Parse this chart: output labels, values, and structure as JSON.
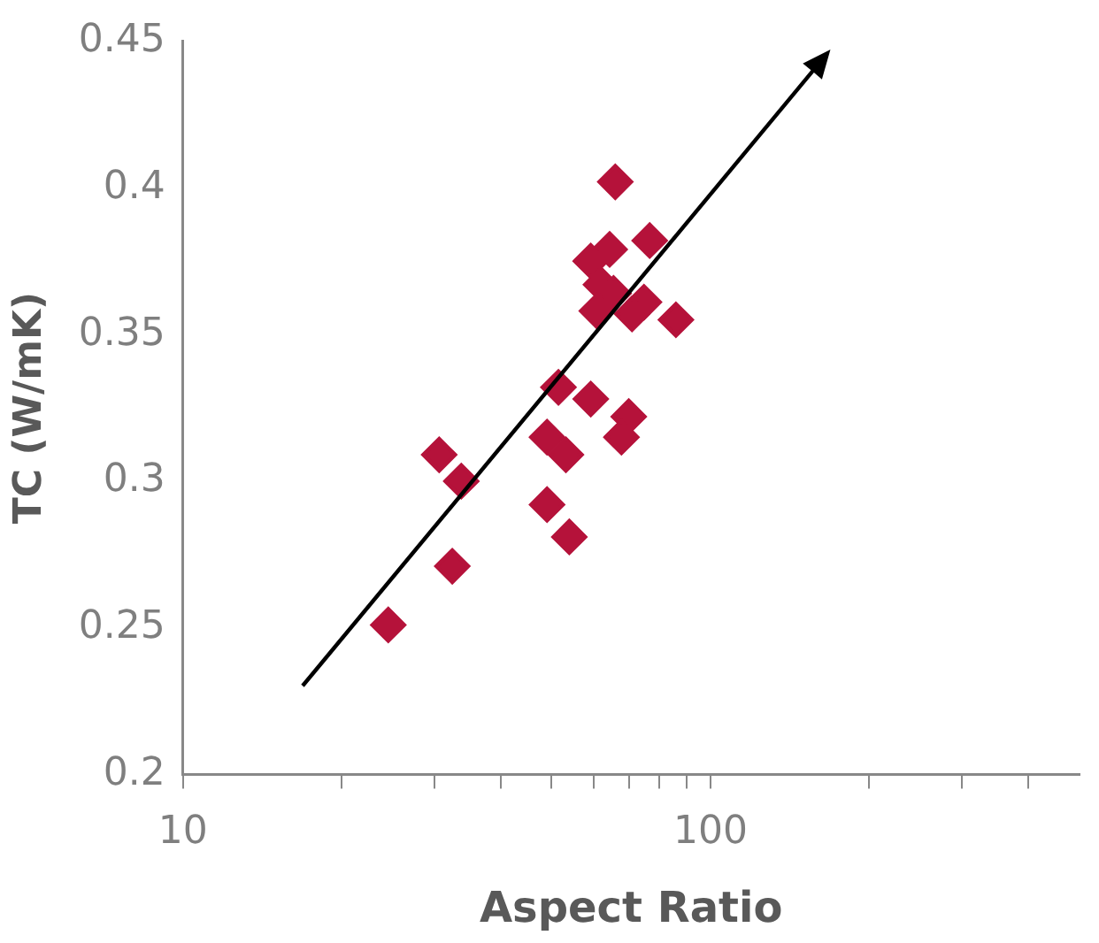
{
  "chart_data": {
    "type": "scatter",
    "xlabel": "Aspect Ratio",
    "ylabel": "TC (W/mK)",
    "log": "x",
    "xlim": [
      10,
      500
    ],
    "ylim": [
      0.2,
      0.45
    ],
    "xticks": [
      10,
      {
        "value": 20,
        "label": null
      },
      {
        "value": 30,
        "label": null
      },
      {
        "value": 40,
        "label": null
      },
      {
        "value": 50,
        "label": null
      },
      {
        "value": 60,
        "label": null
      },
      {
        "value": 70,
        "label": null
      },
      {
        "value": 80,
        "label": null
      },
      {
        "value": 90,
        "label": null
      },
      100,
      {
        "value": 200,
        "label": null
      },
      {
        "value": 300,
        "label": null
      },
      {
        "value": 400,
        "label": null
      }
    ],
    "yticks": [
      0.2,
      0.25,
      0.3,
      0.35,
      0.4,
      0.45
    ],
    "grid": false,
    "legend": false,
    "marker": "diamond",
    "series": [
      {
        "color": "#b5123a",
        "x": [
          66,
          76.7,
          59.3,
          64.4,
          62,
          65.5,
          60.9,
          74.8,
          71,
          86,
          51.5,
          59.3,
          70,
          67.8,
          49,
          53.2,
          30.6,
          33.7,
          49,
          54,
          32.4,
          24.5
        ],
        "values": [
          0.402,
          0.382,
          0.375,
          0.379,
          0.367,
          0.364,
          0.358,
          0.361,
          0.357,
          0.355,
          0.332,
          0.328,
          0.322,
          0.315,
          0.315,
          0.309,
          0.309,
          0.3,
          0.292,
          0.281,
          0.271,
          0.251
        ]
      }
    ]
  }
}
